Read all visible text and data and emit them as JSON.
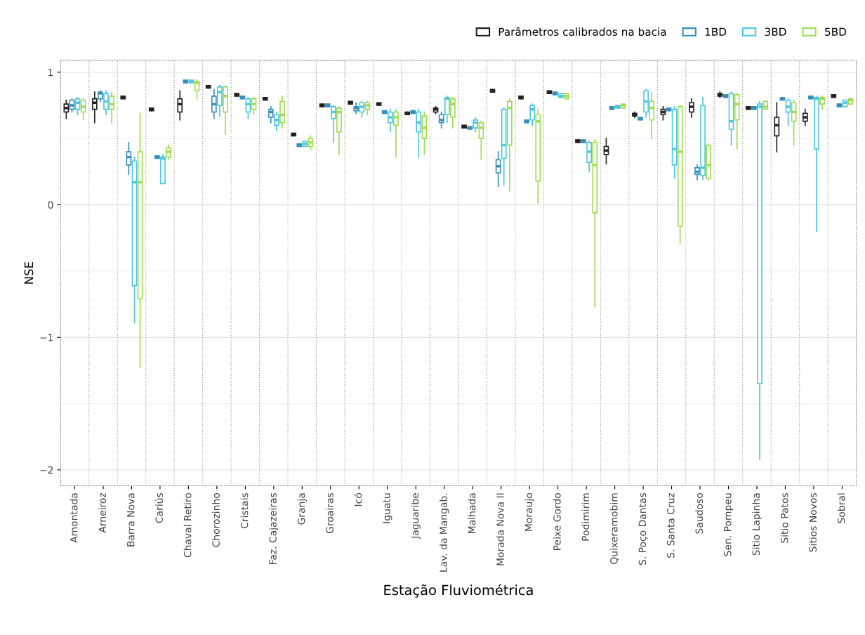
{
  "chart_data": {
    "type": "box",
    "xlabel": "Estação Fluviométrica",
    "ylabel": "NSE",
    "categories": [
      "Amontada",
      "Arneiroz",
      "Barra Nova",
      "Cariús",
      "Chaval Retiro",
      "Chorozinho",
      "Cristais",
      "Faz. Cajazeiras",
      "Granja",
      "Groairas",
      "Icó",
      "Iguatu",
      "Jaguaribe",
      "Lav. da Mangab.",
      "Malhada",
      "Morada Nova II",
      "Moraujo",
      "Peixe Gordo",
      "Podimirim",
      "Quixeramobim",
      "S. Poço Dantas",
      "S. Santa Cruz",
      "Saudoso",
      "Sen. Pompeu",
      "Sitio Lapinha",
      "Sitio Patos",
      "Sitios Novos",
      "Sobral"
    ],
    "ylim": [
      -2.12,
      1.09
    ],
    "yticks": [
      -2,
      -1,
      0,
      1
    ],
    "grid": true,
    "legend": "top right",
    "series": [
      {
        "name": "Parâmetros calibrados na bacia",
        "color": "#222222",
        "boxes": [
          {
            "low": 0.65,
            "q1": 0.7,
            "median": 0.73,
            "q3": 0.76,
            "high": 0.79
          },
          {
            "low": 0.62,
            "q1": 0.72,
            "median": 0.77,
            "q3": 0.8,
            "high": 0.85
          },
          {
            "low": 0.8,
            "q1": 0.8,
            "median": 0.81,
            "q3": 0.82,
            "high": 0.82
          },
          {
            "low": 0.71,
            "q1": 0.71,
            "median": 0.72,
            "q3": 0.73,
            "high": 0.73
          },
          {
            "low": 0.64,
            "q1": 0.7,
            "median": 0.76,
            "q3": 0.8,
            "high": 0.86
          },
          {
            "low": 0.88,
            "q1": 0.88,
            "median": 0.89,
            "q3": 0.9,
            "high": 0.9
          },
          {
            "low": 0.82,
            "q1": 0.82,
            "median": 0.83,
            "q3": 0.84,
            "high": 0.84
          },
          {
            "low": 0.79,
            "q1": 0.79,
            "median": 0.8,
            "q3": 0.81,
            "high": 0.81
          },
          {
            "low": 0.52,
            "q1": 0.52,
            "median": 0.53,
            "q3": 0.54,
            "high": 0.54
          },
          {
            "low": 0.74,
            "q1": 0.74,
            "median": 0.75,
            "q3": 0.76,
            "high": 0.76
          },
          {
            "low": 0.76,
            "q1": 0.76,
            "median": 0.77,
            "q3": 0.78,
            "high": 0.78
          },
          {
            "low": 0.75,
            "q1": 0.75,
            "median": 0.76,
            "q3": 0.77,
            "high": 0.77
          },
          {
            "low": 0.68,
            "q1": 0.68,
            "median": 0.69,
            "q3": 0.7,
            "high": 0.7
          },
          {
            "low": 0.69,
            "q1": 0.7,
            "median": 0.72,
            "q3": 0.73,
            "high": 0.74
          },
          {
            "low": 0.58,
            "q1": 0.58,
            "median": 0.59,
            "q3": 0.6,
            "high": 0.6
          },
          {
            "low": 0.85,
            "q1": 0.85,
            "median": 0.86,
            "q3": 0.87,
            "high": 0.87
          },
          {
            "low": 0.8,
            "q1": 0.8,
            "median": 0.81,
            "q3": 0.82,
            "high": 0.82
          },
          {
            "low": 0.84,
            "q1": 0.84,
            "median": 0.85,
            "q3": 0.86,
            "high": 0.86
          },
          {
            "low": 0.47,
            "q1": 0.47,
            "median": 0.48,
            "q3": 0.49,
            "high": 0.49
          },
          {
            "low": 0.31,
            "q1": 0.38,
            "median": 0.41,
            "q3": 0.44,
            "high": 0.5
          },
          {
            "low": 0.66,
            "q1": 0.67,
            "median": 0.68,
            "q3": 0.69,
            "high": 0.7
          },
          {
            "low": 0.64,
            "q1": 0.68,
            "median": 0.7,
            "q3": 0.72,
            "high": 0.74
          },
          {
            "low": 0.66,
            "q1": 0.7,
            "median": 0.74,
            "q3": 0.77,
            "high": 0.8
          },
          {
            "low": 0.81,
            "q1": 0.82,
            "median": 0.83,
            "q3": 0.84,
            "high": 0.85
          },
          {
            "low": 0.72,
            "q1": 0.72,
            "median": 0.73,
            "q3": 0.74,
            "high": 0.74
          },
          {
            "low": 0.4,
            "q1": 0.52,
            "median": 0.6,
            "q3": 0.66,
            "high": 0.77
          },
          {
            "low": 0.6,
            "q1": 0.63,
            "median": 0.66,
            "q3": 0.69,
            "high": 0.72
          },
          {
            "low": 0.81,
            "q1": 0.81,
            "median": 0.82,
            "q3": 0.83,
            "high": 0.83
          }
        ]
      },
      {
        "name": "1BD",
        "color": "#3a8fb7",
        "boxes": [
          {
            "low": 0.7,
            "q1": 0.72,
            "median": 0.75,
            "q3": 0.79,
            "high": 0.8
          },
          {
            "low": 0.78,
            "q1": 0.8,
            "median": 0.84,
            "q3": 0.85,
            "high": 0.86
          },
          {
            "low": 0.23,
            "q1": 0.3,
            "median": 0.36,
            "q3": 0.4,
            "high": 0.47
          },
          {
            "low": 0.35,
            "q1": 0.35,
            "median": 0.36,
            "q3": 0.37,
            "high": 0.37
          },
          {
            "low": 0.92,
            "q1": 0.92,
            "median": 0.93,
            "q3": 0.94,
            "high": 0.94
          },
          {
            "low": 0.65,
            "q1": 0.7,
            "median": 0.76,
            "q3": 0.82,
            "high": 0.87
          },
          {
            "low": 0.8,
            "q1": 0.8,
            "median": 0.81,
            "q3": 0.82,
            "high": 0.82
          },
          {
            "low": 0.62,
            "q1": 0.66,
            "median": 0.7,
            "q3": 0.72,
            "high": 0.74
          },
          {
            "low": 0.44,
            "q1": 0.44,
            "median": 0.45,
            "q3": 0.46,
            "high": 0.46
          },
          {
            "low": 0.74,
            "q1": 0.74,
            "median": 0.75,
            "q3": 0.76,
            "high": 0.76
          },
          {
            "low": 0.69,
            "q1": 0.71,
            "median": 0.73,
            "q3": 0.74,
            "high": 0.77
          },
          {
            "low": 0.69,
            "q1": 0.69,
            "median": 0.7,
            "q3": 0.71,
            "high": 0.71
          },
          {
            "low": 0.69,
            "q1": 0.69,
            "median": 0.7,
            "q3": 0.71,
            "high": 0.71
          },
          {
            "low": 0.58,
            "q1": 0.62,
            "median": 0.64,
            "q3": 0.68,
            "high": 0.7
          },
          {
            "low": 0.57,
            "q1": 0.57,
            "median": 0.58,
            "q3": 0.59,
            "high": 0.59
          },
          {
            "low": 0.14,
            "q1": 0.24,
            "median": 0.29,
            "q3": 0.34,
            "high": 0.4
          },
          {
            "low": 0.62,
            "q1": 0.62,
            "median": 0.63,
            "q3": 0.64,
            "high": 0.64
          },
          {
            "low": 0.83,
            "q1": 0.83,
            "median": 0.84,
            "q3": 0.85,
            "high": 0.85
          },
          {
            "low": 0.47,
            "q1": 0.47,
            "median": 0.48,
            "q3": 0.49,
            "high": 0.49
          },
          {
            "low": 0.72,
            "q1": 0.72,
            "median": 0.73,
            "q3": 0.74,
            "high": 0.74
          },
          {
            "low": 0.64,
            "q1": 0.64,
            "median": 0.65,
            "q3": 0.66,
            "high": 0.66
          },
          {
            "low": 0.71,
            "q1": 0.71,
            "median": 0.72,
            "q3": 0.73,
            "high": 0.73
          },
          {
            "low": 0.19,
            "q1": 0.23,
            "median": 0.25,
            "q3": 0.28,
            "high": 0.3
          },
          {
            "low": 0.81,
            "q1": 0.81,
            "median": 0.82,
            "q3": 0.83,
            "high": 0.83
          },
          {
            "low": 0.72,
            "q1": 0.72,
            "median": 0.73,
            "q3": 0.74,
            "high": 0.74
          },
          {
            "low": 0.79,
            "q1": 0.79,
            "median": 0.8,
            "q3": 0.81,
            "high": 0.81
          },
          {
            "low": 0.8,
            "q1": 0.8,
            "median": 0.81,
            "q3": 0.82,
            "high": 0.82
          },
          {
            "low": 0.74,
            "q1": 0.74,
            "median": 0.75,
            "q3": 0.76,
            "high": 0.76
          }
        ]
      },
      {
        "name": "3BD",
        "color": "#4cc8e0",
        "boxes": [
          {
            "low": 0.68,
            "q1": 0.72,
            "median": 0.77,
            "q3": 0.8,
            "high": 0.81
          },
          {
            "low": 0.68,
            "q1": 0.72,
            "median": 0.78,
            "q3": 0.84,
            "high": 0.86
          },
          {
            "low": -0.89,
            "q1": -0.61,
            "median": 0.17,
            "q3": 0.33,
            "high": 0.36
          },
          {
            "low": 0.16,
            "q1": 0.16,
            "median": 0.35,
            "q3": 0.36,
            "high": 0.38
          },
          {
            "low": 0.92,
            "q1": 0.92,
            "median": 0.93,
            "q3": 0.94,
            "high": 0.94
          },
          {
            "low": 0.67,
            "q1": 0.75,
            "median": 0.85,
            "q3": 0.89,
            "high": 0.9
          },
          {
            "low": 0.65,
            "q1": 0.7,
            "median": 0.76,
            "q3": 0.8,
            "high": 0.81
          },
          {
            "low": 0.56,
            "q1": 0.6,
            "median": 0.64,
            "q3": 0.68,
            "high": 0.7
          },
          {
            "low": 0.44,
            "q1": 0.44,
            "median": 0.46,
            "q3": 0.48,
            "high": 0.48
          },
          {
            "low": 0.47,
            "q1": 0.65,
            "median": 0.7,
            "q3": 0.74,
            "high": 0.75
          },
          {
            "low": 0.66,
            "q1": 0.7,
            "median": 0.74,
            "q3": 0.77,
            "high": 0.78
          },
          {
            "low": 0.55,
            "q1": 0.62,
            "median": 0.66,
            "q3": 0.7,
            "high": 0.72
          },
          {
            "low": 0.36,
            "q1": 0.55,
            "median": 0.62,
            "q3": 0.7,
            "high": 0.72
          },
          {
            "low": 0.62,
            "q1": 0.68,
            "median": 0.8,
            "q3": 0.81,
            "high": 0.82
          },
          {
            "low": 0.55,
            "q1": 0.58,
            "median": 0.62,
            "q3": 0.64,
            "high": 0.66
          },
          {
            "low": 0.15,
            "q1": 0.35,
            "median": 0.45,
            "q3": 0.72,
            "high": 0.73
          },
          {
            "low": 0.6,
            "q1": 0.64,
            "median": 0.72,
            "q3": 0.75,
            "high": 0.76
          },
          {
            "low": 0.81,
            "q1": 0.81,
            "median": 0.82,
            "q3": 0.84,
            "high": 0.84
          },
          {
            "low": 0.25,
            "q1": 0.32,
            "median": 0.4,
            "q3": 0.47,
            "high": 0.48
          },
          {
            "low": 0.73,
            "q1": 0.73,
            "median": 0.74,
            "q3": 0.75,
            "high": 0.75
          },
          {
            "low": 0.66,
            "q1": 0.7,
            "median": 0.78,
            "q3": 0.86,
            "high": 0.87
          },
          {
            "low": 0.2,
            "q1": 0.3,
            "median": 0.42,
            "q3": 0.72,
            "high": 0.74
          },
          {
            "low": 0.19,
            "q1": 0.22,
            "median": 0.28,
            "q3": 0.75,
            "high": 0.81
          },
          {
            "low": 0.45,
            "q1": 0.57,
            "median": 0.63,
            "q3": 0.84,
            "high": 0.85
          },
          {
            "low": -1.92,
            "q1": -1.35,
            "median": 0.74,
            "q3": 0.76,
            "high": 0.78
          },
          {
            "low": 0.6,
            "q1": 0.7,
            "median": 0.74,
            "q3": 0.79,
            "high": 0.8
          },
          {
            "low": -0.2,
            "q1": 0.42,
            "median": 0.8,
            "q3": 0.81,
            "high": 0.82
          },
          {
            "low": 0.74,
            "q1": 0.74,
            "median": 0.77,
            "q3": 0.79,
            "high": 0.79
          }
        ]
      },
      {
        "name": "5BD",
        "color": "#9fdc50",
        "boxes": [
          {
            "low": 0.64,
            "q1": 0.7,
            "median": 0.74,
            "q3": 0.79,
            "high": 0.8
          },
          {
            "low": 0.62,
            "q1": 0.72,
            "median": 0.76,
            "q3": 0.82,
            "high": 0.85
          },
          {
            "low": -1.23,
            "q1": -0.71,
            "median": 0.17,
            "q3": 0.4,
            "high": 0.69
          },
          {
            "low": 0.34,
            "q1": 0.36,
            "median": 0.4,
            "q3": 0.43,
            "high": 0.45
          },
          {
            "low": 0.8,
            "q1": 0.86,
            "median": 0.92,
            "q3": 0.93,
            "high": 0.94
          },
          {
            "low": 0.53,
            "q1": 0.7,
            "median": 0.82,
            "q3": 0.89,
            "high": 0.9
          },
          {
            "low": 0.68,
            "q1": 0.72,
            "median": 0.76,
            "q3": 0.8,
            "high": 0.81
          },
          {
            "low": 0.58,
            "q1": 0.62,
            "median": 0.68,
            "q3": 0.78,
            "high": 0.82
          },
          {
            "low": 0.42,
            "q1": 0.44,
            "median": 0.47,
            "q3": 0.5,
            "high": 0.52
          },
          {
            "low": 0.38,
            "q1": 0.55,
            "median": 0.7,
            "q3": 0.73,
            "high": 0.74
          },
          {
            "low": 0.68,
            "q1": 0.72,
            "median": 0.75,
            "q3": 0.77,
            "high": 0.78
          },
          {
            "low": 0.36,
            "q1": 0.6,
            "median": 0.66,
            "q3": 0.7,
            "high": 0.72
          },
          {
            "low": 0.38,
            "q1": 0.5,
            "median": 0.58,
            "q3": 0.67,
            "high": 0.7
          },
          {
            "low": 0.58,
            "q1": 0.66,
            "median": 0.76,
            "q3": 0.8,
            "high": 0.81
          },
          {
            "low": 0.34,
            "q1": 0.5,
            "median": 0.58,
            "q3": 0.62,
            "high": 0.63
          },
          {
            "low": 0.1,
            "q1": 0.45,
            "median": 0.73,
            "q3": 0.78,
            "high": 0.8
          },
          {
            "low": 0.01,
            "q1": 0.18,
            "median": 0.63,
            "q3": 0.68,
            "high": 0.72
          },
          {
            "low": 0.8,
            "q1": 0.8,
            "median": 0.82,
            "q3": 0.84,
            "high": 0.84
          },
          {
            "low": -0.77,
            "q1": -0.06,
            "median": 0.3,
            "q3": 0.47,
            "high": 0.49
          },
          {
            "low": 0.73,
            "q1": 0.73,
            "median": 0.75,
            "q3": 0.76,
            "high": 0.76
          },
          {
            "low": 0.5,
            "q1": 0.64,
            "median": 0.73,
            "q3": 0.78,
            "high": 0.85
          },
          {
            "low": -0.29,
            "q1": -0.16,
            "median": 0.4,
            "q3": 0.74,
            "high": 0.75
          },
          {
            "low": 0.19,
            "q1": 0.2,
            "median": 0.3,
            "q3": 0.45,
            "high": 0.46
          },
          {
            "low": 0.42,
            "q1": 0.64,
            "median": 0.76,
            "q3": 0.83,
            "high": 0.84
          },
          {
            "low": 0.72,
            "q1": 0.72,
            "median": 0.74,
            "q3": 0.78,
            "high": 0.78
          },
          {
            "low": 0.45,
            "q1": 0.63,
            "median": 0.7,
            "q3": 0.77,
            "high": 0.79
          },
          {
            "low": 0.72,
            "q1": 0.76,
            "median": 0.8,
            "q3": 0.81,
            "high": 0.82
          },
          {
            "low": 0.76,
            "q1": 0.76,
            "median": 0.79,
            "q3": 0.8,
            "high": 0.8
          }
        ]
      }
    ]
  }
}
